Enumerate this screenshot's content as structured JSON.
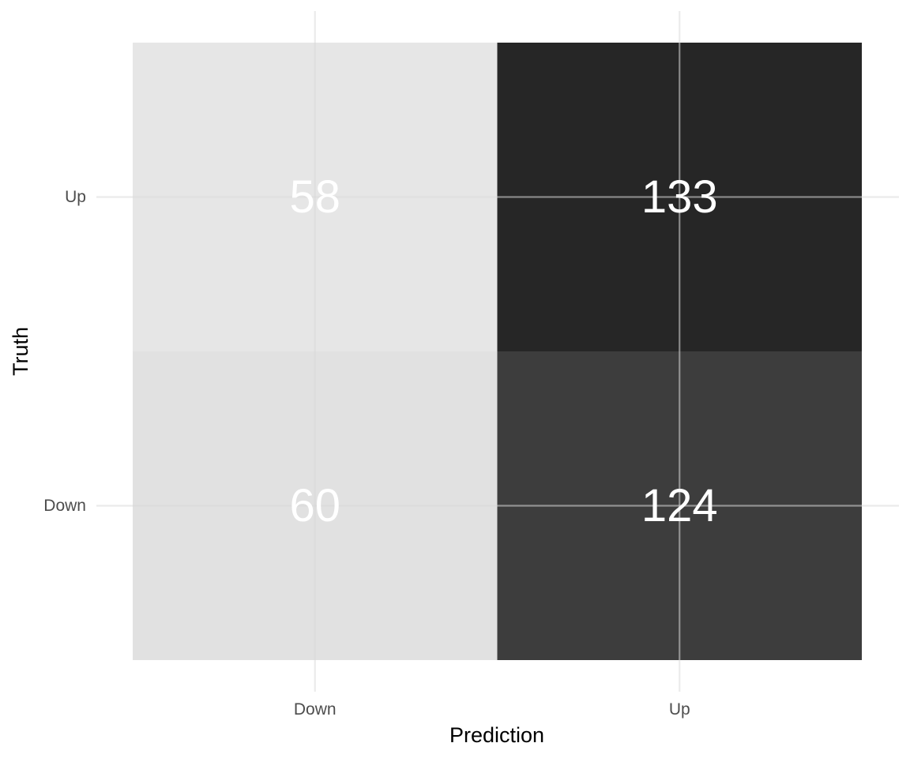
{
  "chart_data": {
    "type": "heatmap",
    "title": "",
    "xlabel": "Prediction",
    "ylabel": "Truth",
    "x_categories": [
      "Down",
      "Up"
    ],
    "y_categories": [
      "Down",
      "Up"
    ],
    "cells": [
      {
        "x": "Down",
        "y": "Up",
        "value": 58
      },
      {
        "x": "Up",
        "y": "Up",
        "value": 133
      },
      {
        "x": "Down",
        "y": "Down",
        "value": 60
      },
      {
        "x": "Up",
        "y": "Down",
        "value": 124
      }
    ],
    "grid": true,
    "legend": "none",
    "colors": {
      "low": "#e6e6e6",
      "high": "#262626",
      "cell_text": "#ffffff",
      "grid": "#ebebeb"
    }
  }
}
